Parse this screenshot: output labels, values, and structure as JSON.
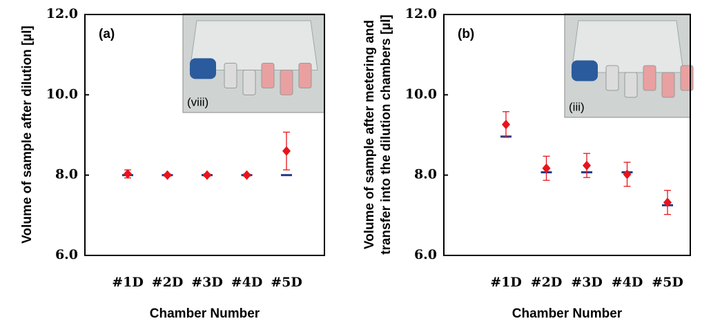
{
  "chart_data": [
    {
      "type": "errorbar",
      "panel_label": "(a)",
      "inset_label": "(viii)",
      "ylabel": [
        "Volume of sample after dilution [µl]"
      ],
      "xlabel": "Chamber Number",
      "categories": [
        "#1D",
        "#2D",
        "#3D",
        "#4D",
        "#5D"
      ],
      "ylim": [
        6,
        12
      ],
      "yticks": [
        {
          "value": 6,
          "label": "6.0"
        },
        {
          "value": 8,
          "label": "8.0"
        },
        {
          "value": 10,
          "label": "10.0"
        },
        {
          "value": 12,
          "label": "12.0"
        }
      ],
      "measured": {
        "color": "#e8141b",
        "values": [
          8.03,
          8.0,
          8.0,
          8.0,
          8.6
        ],
        "errors": [
          0.1,
          0.03,
          0.03,
          0.03,
          0.47
        ]
      },
      "target": {
        "color": "#1f3a8a",
        "values": [
          8.0,
          8.0,
          8.0,
          8.0,
          8.0
        ]
      }
    },
    {
      "type": "errorbar",
      "panel_label": "(b)",
      "inset_label": "(iii)",
      "ylabel": [
        "Volume of sample after metering and",
        "transfer into the dilution chambers [µl]"
      ],
      "xlabel": "Chamber Number",
      "categories": [
        "#1D",
        "#2D",
        "#3D",
        "#4D",
        "#5D"
      ],
      "ylim": [
        6,
        12
      ],
      "yticks": [
        {
          "value": 6,
          "label": "6.0"
        },
        {
          "value": 8,
          "label": "8.0"
        },
        {
          "value": 10,
          "label": "10.0"
        },
        {
          "value": 12,
          "label": "12.0"
        }
      ],
      "measured": {
        "color": "#e8141b",
        "values": [
          9.26,
          8.17,
          8.24,
          8.02,
          7.32
        ],
        "errors": [
          0.32,
          0.3,
          0.3,
          0.3,
          0.3
        ]
      },
      "target": {
        "color": "#1f3a8a",
        "values": [
          8.96,
          8.07,
          8.07,
          8.07,
          7.25
        ]
      }
    }
  ]
}
